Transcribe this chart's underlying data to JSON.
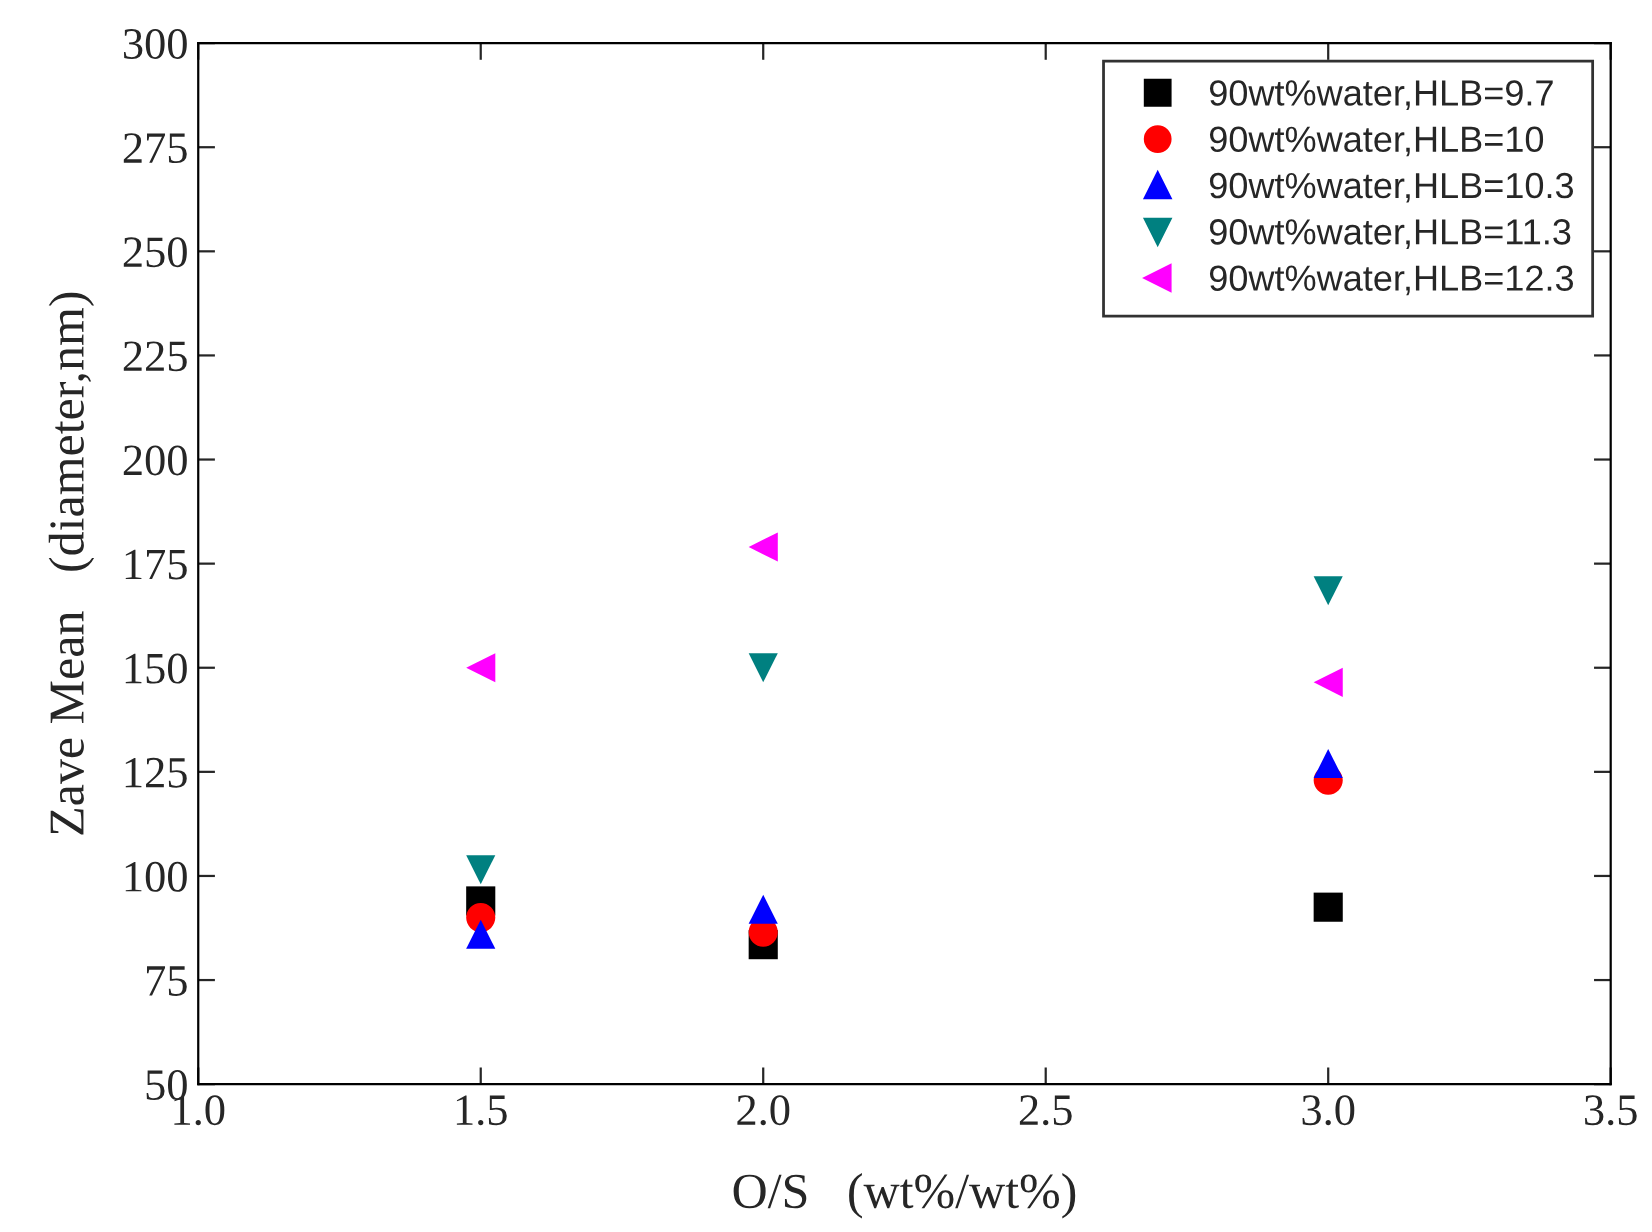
{
  "chart_data": {
    "type": "scatter",
    "xlabel": "O/S   (wt%/wt%)",
    "ylabel": "Zave Mean   (diameter,nm)",
    "xlim": [
      1.0,
      3.5
    ],
    "ylim": [
      50,
      300
    ],
    "xticks": [
      {
        "value": 1.0,
        "label": "1.0"
      },
      {
        "value": 1.5,
        "label": "1.5"
      },
      {
        "value": 2.0,
        "label": "2.0"
      },
      {
        "value": 2.5,
        "label": "2.5"
      },
      {
        "value": 3.0,
        "label": "3.0"
      },
      {
        "value": 3.5,
        "label": "3.5"
      }
    ],
    "yticks": [
      50,
      75,
      100,
      125,
      150,
      175,
      200,
      225,
      250,
      275,
      300
    ],
    "x": [
      1.5,
      2.0,
      3.0
    ],
    "legend": "top right",
    "grid": false,
    "series": [
      {
        "name": "90wt%water,HLB=9.7",
        "color": "#000000",
        "marker": "square",
        "values": [
          94,
          83.5,
          92.5
        ]
      },
      {
        "name": "90wt%water,HLB=10",
        "color": "#ff0000",
        "marker": "circle",
        "values": [
          90,
          86.5,
          123
        ]
      },
      {
        "name": "90wt%water,HLB=10.3",
        "color": "#0000ff",
        "marker": "triangle",
        "values": [
          86,
          92,
          127
        ]
      },
      {
        "name": "90wt%water,HLB=11.3",
        "color": "#008080",
        "marker": "triangle_down",
        "values": [
          101.5,
          150,
          168.5
        ]
      },
      {
        "name": "90wt%water,HLB=12.3",
        "color": "#ff00ff",
        "marker": "triangle_left",
        "values": [
          150,
          179,
          146.5
        ]
      }
    ]
  }
}
